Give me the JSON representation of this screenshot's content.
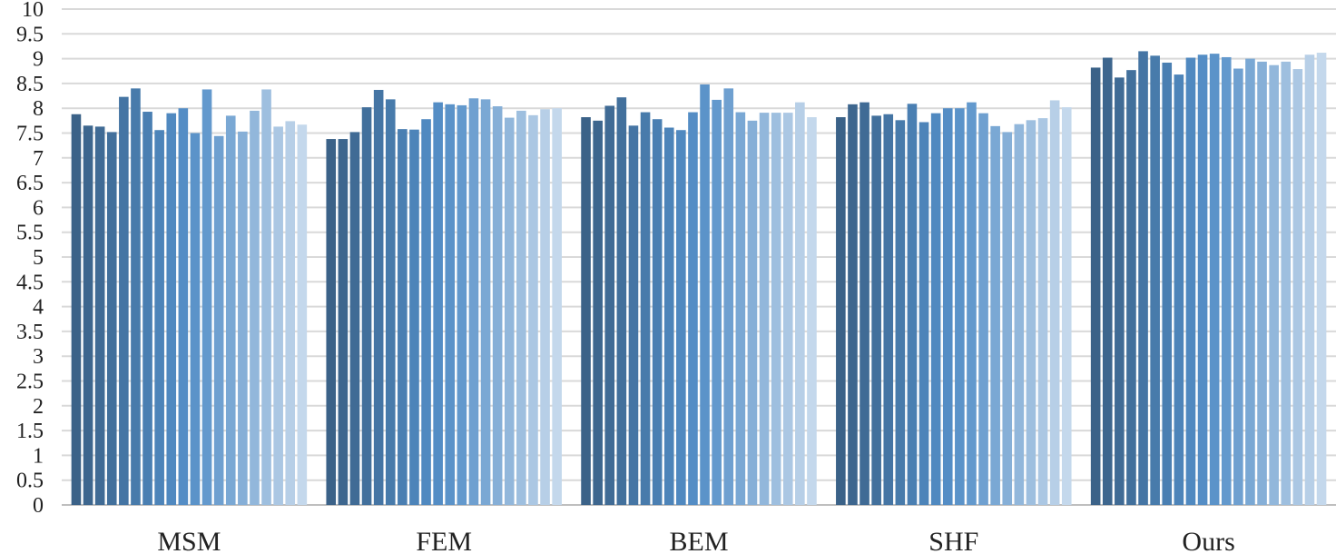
{
  "chart_data": {
    "type": "bar",
    "title": "",
    "xlabel": "",
    "ylabel": "",
    "ylim": [
      0,
      10
    ],
    "yticks": [
      "0",
      "0.5",
      "1",
      "1.5",
      "2",
      "2.5",
      "3",
      "3.5",
      "4",
      "4.5",
      "5",
      "5.5",
      "6",
      "6.5",
      "7",
      "7.5",
      "8",
      "8.5",
      "9",
      "9.5",
      "10"
    ],
    "grid": true,
    "legend": "none",
    "categories": [
      "MSM",
      "FEM",
      "BEM",
      "SHF",
      "Ours"
    ],
    "series": [
      {
        "color": "#3b6288",
        "values": [
          7.88,
          7.38,
          7.82,
          7.82,
          8.82
        ]
      },
      {
        "color": "#3d668e",
        "values": [
          7.65,
          7.38,
          7.75,
          8.08,
          9.02
        ]
      },
      {
        "color": "#406b95",
        "values": [
          7.63,
          7.52,
          8.05,
          8.12,
          8.62
        ]
      },
      {
        "color": "#42709c",
        "values": [
          7.52,
          8.02,
          8.22,
          7.85,
          8.77
        ]
      },
      {
        "color": "#4575a4",
        "values": [
          8.23,
          8.37,
          7.65,
          7.88,
          9.15
        ]
      },
      {
        "color": "#487bab",
        "values": [
          8.4,
          8.18,
          7.92,
          7.76,
          9.06
        ]
      },
      {
        "color": "#4a7fb2",
        "values": [
          7.93,
          7.58,
          7.78,
          8.09,
          8.92
        ]
      },
      {
        "color": "#4d84b9",
        "values": [
          7.56,
          7.57,
          7.61,
          7.72,
          8.68
        ]
      },
      {
        "color": "#5089c0",
        "values": [
          7.9,
          7.78,
          7.56,
          7.9,
          9.02
        ]
      },
      {
        "color": "#548dc5",
        "values": [
          8.0,
          8.12,
          7.92,
          8.0,
          9.08
        ]
      },
      {
        "color": "#5b93c9",
        "values": [
          7.5,
          8.08,
          8.48,
          8.0,
          9.1
        ]
      },
      {
        "color": "#6399cd",
        "values": [
          8.38,
          8.06,
          8.17,
          8.12,
          9.03
        ]
      },
      {
        "color": "#6fa0d0",
        "values": [
          7.44,
          8.2,
          8.4,
          7.9,
          8.8
        ]
      },
      {
        "color": "#7aa8d4",
        "values": [
          7.85,
          8.18,
          7.92,
          7.64,
          9.0
        ]
      },
      {
        "color": "#86afd7",
        "values": [
          7.53,
          8.04,
          7.75,
          7.52,
          8.94
        ]
      },
      {
        "color": "#92b7db",
        "values": [
          7.95,
          7.81,
          7.91,
          7.68,
          8.87
        ]
      },
      {
        "color": "#9ebfdf",
        "values": [
          8.38,
          7.95,
          7.91,
          7.76,
          8.94
        ]
      },
      {
        "color": "#abc7e3",
        "values": [
          7.63,
          7.86,
          7.91,
          7.8,
          8.79
        ]
      },
      {
        "color": "#b7cfe7",
        "values": [
          7.74,
          7.98,
          8.12,
          8.16,
          9.08
        ]
      },
      {
        "color": "#c4d8ec",
        "values": [
          7.67,
          8.0,
          7.82,
          8.02,
          9.12
        ]
      }
    ]
  }
}
